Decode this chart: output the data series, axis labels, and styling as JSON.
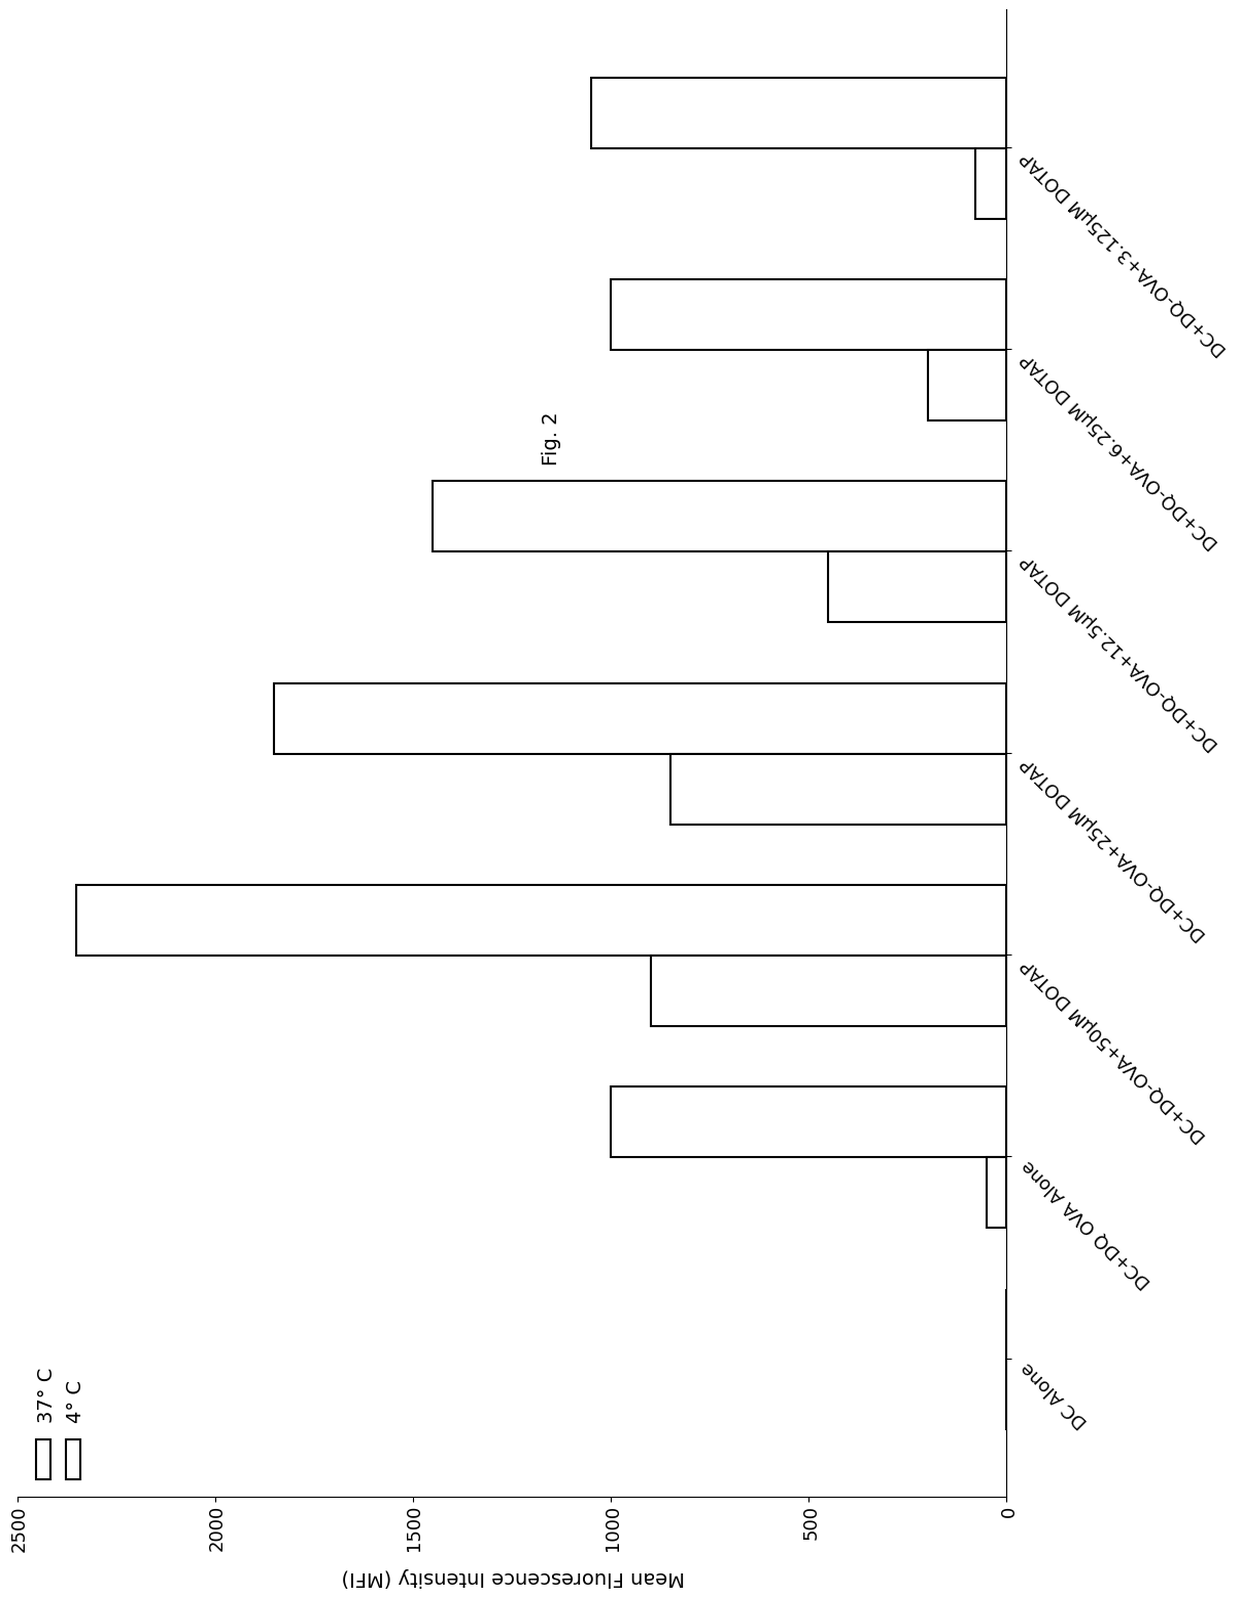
{
  "title": "Fig. 2",
  "ylabel": "Mean Fluorescence Intensity (MFI)",
  "categories": [
    "DC Alone",
    "DC+DQ OVA Alone",
    "DC+DQ-OVA+50μM DOTAP",
    "DC+DQ-OVA+25μM DOTAP",
    "DC+DQ-OVA+12.5μM DOTAP",
    "DC+DQ-OVA+6.25μM DOTAP",
    "DC+DQ-OVA+3.125μM DOTAP"
  ],
  "values_37": [
    0,
    1000,
    2350,
    1850,
    1450,
    1000,
    1050
  ],
  "values_4": [
    0,
    50,
    900,
    850,
    450,
    200,
    80
  ],
  "ylim": [
    0,
    2500
  ],
  "yticks": [
    0,
    500,
    1000,
    1500,
    2000,
    2500
  ],
  "bar_width": 0.35,
  "color_37": "#ffffff",
  "color_4": "#ffffff",
  "edgecolor": "#000000",
  "hatch_4": "======",
  "background_color": "#ffffff",
  "legend_labels": [
    "37° C",
    "4° C"
  ],
  "fig_label": "Fig. 2"
}
